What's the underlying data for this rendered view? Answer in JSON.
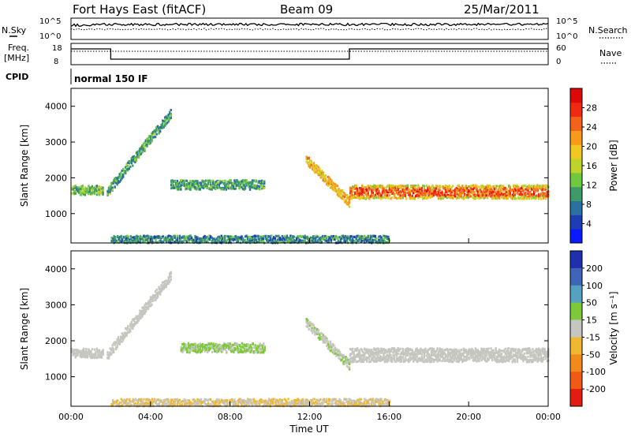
{
  "header": {
    "site": "Fort Hays East (fitACF)",
    "beam": "Beam 09",
    "date": "25/Mar/2011"
  },
  "panels": {
    "noise": {
      "left_label": "N.Sky",
      "right_label": "N.Search",
      "left_ticks": [
        "10^5",
        "10^0"
      ],
      "right_ticks": [
        "10^5",
        "10^0"
      ]
    },
    "freq": {
      "left_label_1": "Freq.",
      "left_label_2": "[MHz]",
      "right_label": "Nave",
      "left_ticks": [
        "18",
        "8"
      ],
      "right_ticks": [
        "60",
        "0"
      ]
    },
    "cpid": {
      "left_label": "CPID",
      "value": "normal 150 IF"
    }
  },
  "chart_data": [
    {
      "type": "heatmap",
      "title": "",
      "xlabel": "",
      "ylabel": "Slant Range [km]",
      "x_ticks": [
        "00:00",
        "04:00",
        "08:00",
        "12:00",
        "16:00",
        "20:00",
        "00:00"
      ],
      "xlim_hours": [
        0,
        24
      ],
      "ylim": [
        180,
        4500
      ],
      "y_ticks": [
        1000,
        2000,
        3000,
        4000
      ],
      "colorbar": {
        "label": "Power [dB]",
        "ticks": [
          "4",
          "8",
          "12",
          "16",
          "20",
          "24",
          "28"
        ],
        "colors": [
          "#0a1aff",
          "#1e3cb4",
          "#2a70a0",
          "#3f9a6a",
          "#6fc840",
          "#bfd42a",
          "#f0c820",
          "#f59a1a",
          "#f2621a",
          "#ee2a12",
          "#dd0808"
        ]
      },
      "features": [
        {
          "name": "early band",
          "t_start": 0.0,
          "t_end": 1.6,
          "range_km": 1650,
          "value_db": 12
        },
        {
          "name": "rising arc",
          "t_start": 1.8,
          "t_end": 5.0,
          "range_start_km": 1600,
          "range_end_km": 3800,
          "value_db": 10
        },
        {
          "name": "evening patch",
          "t_start": 5.0,
          "t_end": 9.7,
          "range_km": 1800,
          "value_db": 10
        },
        {
          "name": "descending arc",
          "t_start": 11.8,
          "t_end": 14.0,
          "range_start_km": 2500,
          "range_end_km": 1300,
          "value_db": 20
        },
        {
          "name": "main band",
          "t_start": 14.0,
          "t_end": 24.0,
          "range_km": 1600,
          "value_db": 26
        },
        {
          "name": "ground scatter",
          "t_start": 2.0,
          "t_end": 16.0,
          "range_km": 250,
          "value_db": 8
        }
      ]
    },
    {
      "type": "heatmap",
      "title": "",
      "xlabel": "Time UT",
      "ylabel": "Slant Range [km]",
      "x_ticks": [
        "00:00",
        "04:00",
        "08:00",
        "12:00",
        "16:00",
        "20:00",
        "00:00"
      ],
      "xlim_hours": [
        0,
        24
      ],
      "ylim": [
        180,
        4500
      ],
      "y_ticks": [
        1000,
        2000,
        3000,
        4000
      ],
      "colorbar": {
        "label": "Velocity [m s⁻¹]",
        "ticks": [
          "200",
          "100",
          "50",
          "15",
          "-15",
          "-50",
          "-100",
          "-200"
        ],
        "colors": [
          "#1f2fb0",
          "#3f64b8",
          "#54a2c0",
          "#7ec83c",
          "#c6c6c0",
          "#f0b830",
          "#f08a1a",
          "#ef5a14",
          "#e21c10"
        ]
      },
      "features": [
        {
          "name": "early band",
          "t_start": 0.0,
          "t_end": 1.6,
          "range_km": 1650,
          "velocity": 0
        },
        {
          "name": "rising arc",
          "t_start": 1.8,
          "t_end": 5.0,
          "range_start_km": 1600,
          "range_end_km": 3800,
          "velocity": 0
        },
        {
          "name": "evening patch",
          "t_start": 5.5,
          "t_end": 9.7,
          "range_km": 1800,
          "velocity": 40
        },
        {
          "name": "descending arc",
          "t_start": 11.8,
          "t_end": 14.0,
          "range_start_km": 2500,
          "range_end_km": 1300,
          "velocity": 20
        },
        {
          "name": "main band",
          "t_start": 14.0,
          "t_end": 24.0,
          "range_km": 1600,
          "velocity": 0
        },
        {
          "name": "ground scatter",
          "t_start": 2.0,
          "t_end": 16.0,
          "range_km": 250,
          "velocity": -30
        }
      ]
    }
  ]
}
